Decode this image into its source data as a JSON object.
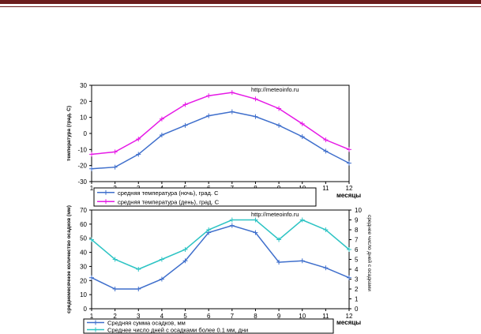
{
  "chart_data": [
    {
      "type": "line",
      "watermark": "http://meteoinfo.ru",
      "ylabel": "температура (град. С)",
      "xlabel": "месяцы",
      "x": [
        1,
        2,
        3,
        4,
        5,
        6,
        7,
        8,
        9,
        10,
        11,
        12
      ],
      "ylim": [
        -30,
        30
      ],
      "yticks": [
        -30,
        -20,
        -10,
        0,
        10,
        20,
        30
      ],
      "grid": false,
      "legend_position": "bottom",
      "series": [
        {
          "name": "средняя температура (ночь), град. С",
          "color": "#3f6fcc",
          "values": [
            -22,
            -21,
            -13,
            -1,
            5,
            11,
            13.5,
            10.5,
            5,
            -2,
            -11,
            -18.5
          ]
        },
        {
          "name": "средняя температура (день), град. С",
          "color": "#e619e6",
          "values": [
            -13,
            -11.5,
            -3.5,
            9,
            18,
            23.5,
            25.5,
            21.5,
            15.5,
            6,
            -4,
            -10
          ]
        }
      ]
    },
    {
      "type": "line",
      "watermark": "http://meteoinfo.ru",
      "ylabel": "среднемесячное количество осадков (мм)",
      "ylabel_right": "среднее число дней с осадками",
      "xlabel": "месяцы",
      "x": [
        1,
        2,
        3,
        4,
        5,
        6,
        7,
        8,
        9,
        10,
        11,
        12
      ],
      "ylim": [
        0,
        70
      ],
      "yticks": [
        0,
        10,
        20,
        30,
        40,
        50,
        60,
        70
      ],
      "ylim_right": [
        0,
        10
      ],
      "yticks_right": [
        0,
        1,
        2,
        3,
        4,
        5,
        6,
        7,
        8,
        9,
        10
      ],
      "grid": false,
      "legend_position": "bottom",
      "series": [
        {
          "name": "Средняя сумма осадков, мм",
          "color": "#3f6fcc",
          "axis": "left",
          "values": [
            22,
            14,
            14,
            21,
            34,
            54,
            59,
            54,
            33,
            34,
            29,
            22
          ]
        },
        {
          "name": "Среднее число дней с  осадками более 0.1 мм, дни",
          "color": "#2ec4c4",
          "axis": "right",
          "values": [
            7,
            5,
            4,
            5,
            6,
            8,
            9,
            9,
            7,
            9,
            8,
            6
          ]
        }
      ]
    }
  ]
}
